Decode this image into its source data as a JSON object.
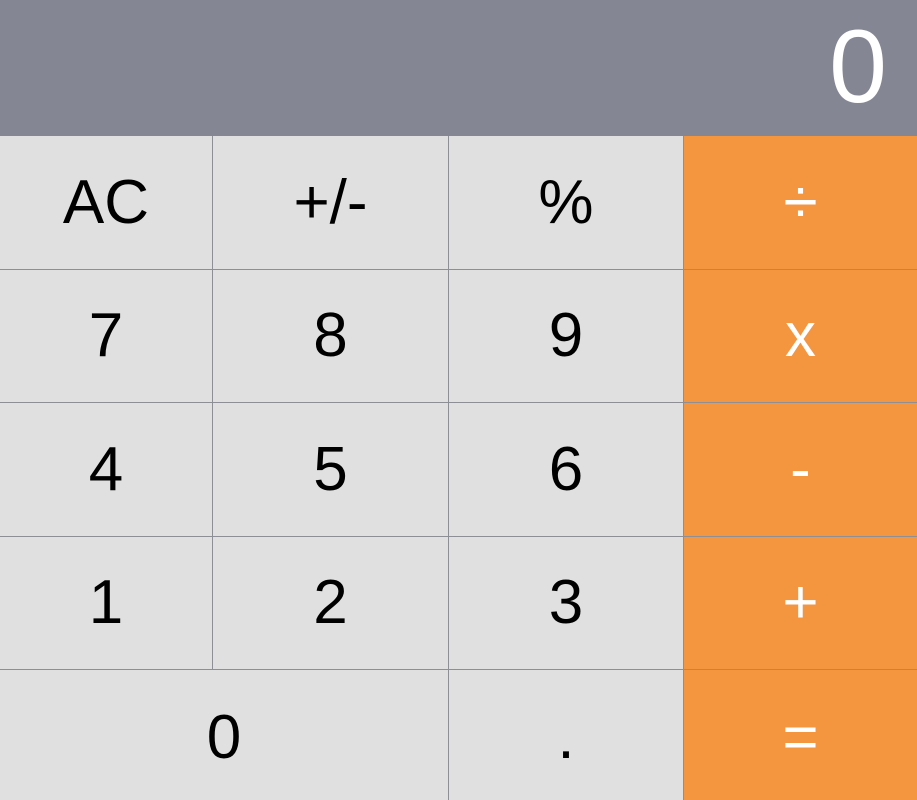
{
  "display": {
    "value": "0"
  },
  "colors": {
    "display_bg": "#858694",
    "key_bg": "#e0e0e0",
    "operator_bg": "#f49540",
    "grid_line": "#8e8e96"
  },
  "keys": {
    "ac": "AC",
    "sign": "+/-",
    "percent": "%",
    "divide": "÷",
    "seven": "7",
    "eight": "8",
    "nine": "9",
    "multiply": "x",
    "four": "4",
    "five": "5",
    "six": "6",
    "subtract": "-",
    "one": "1",
    "two": "2",
    "three": "3",
    "add": "+",
    "zero": "0",
    "decimal": ".",
    "equals": "="
  }
}
